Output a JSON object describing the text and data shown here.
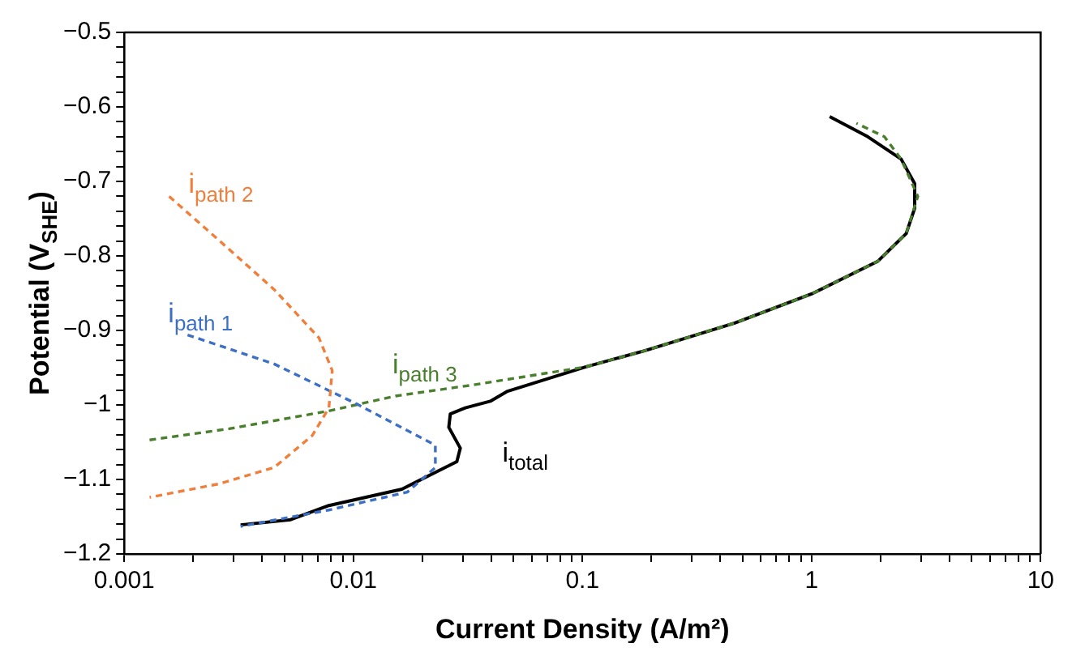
{
  "chart_data": {
    "type": "line",
    "xlabel": "Current Density (A/m²)",
    "ylabel": "Potential (V$_{SHE}$)",
    "log": "x",
    "grid": false,
    "legend": false,
    "marker": "none",
    "xlim": [
      0.001,
      10
    ],
    "ylim": [
      -1.2,
      -0.5
    ],
    "xticks": [
      0.001,
      {
        "value": 0.002,
        "label": null
      },
      {
        "value": 0.003,
        "label": null
      },
      {
        "value": 0.004,
        "label": null
      },
      {
        "value": 0.005,
        "label": null
      },
      {
        "value": 0.006,
        "label": null
      },
      {
        "value": 0.007,
        "label": null
      },
      {
        "value": 0.008,
        "label": null
      },
      {
        "value": 0.009,
        "label": null
      },
      0.01,
      {
        "value": 0.02,
        "label": null
      },
      {
        "value": 0.03,
        "label": null
      },
      {
        "value": 0.04,
        "label": null
      },
      {
        "value": 0.05,
        "label": null
      },
      {
        "value": 0.06,
        "label": null
      },
      {
        "value": 0.07,
        "label": null
      },
      {
        "value": 0.08,
        "label": null
      },
      {
        "value": 0.09,
        "label": null
      },
      0.1,
      {
        "value": 0.2,
        "label": null
      },
      {
        "value": 0.3,
        "label": null
      },
      {
        "value": 0.4,
        "label": null
      },
      {
        "value": 0.5,
        "label": null
      },
      {
        "value": 0.6,
        "label": null
      },
      {
        "value": 0.7,
        "label": null
      },
      {
        "value": 0.8,
        "label": null
      },
      {
        "value": 0.9,
        "label": null
      },
      1,
      {
        "value": 2,
        "label": null
      },
      {
        "value": 3,
        "label": null
      },
      {
        "value": 4,
        "label": null
      },
      {
        "value": 5,
        "label": null
      },
      {
        "value": 6,
        "label": null
      },
      {
        "value": 7,
        "label": null
      },
      {
        "value": 8,
        "label": null
      },
      {
        "value": 9,
        "label": null
      },
      10
    ],
    "yticks": [
      {
        "value": -1.2,
        "label": "−1.2"
      },
      {
        "value": -1.18,
        "label": null
      },
      {
        "value": -1.16,
        "label": null
      },
      {
        "value": -1.14,
        "label": null
      },
      {
        "value": -1.12,
        "label": null
      },
      {
        "value": -1.1,
        "label": "−1.1"
      },
      {
        "value": -1.08,
        "label": null
      },
      {
        "value": -1.06,
        "label": null
      },
      {
        "value": -1.04,
        "label": null
      },
      {
        "value": -1.02,
        "label": null
      },
      {
        "value": -1,
        "label": "−1"
      },
      {
        "value": -0.98,
        "label": null
      },
      {
        "value": -0.96,
        "label": null
      },
      {
        "value": -0.94,
        "label": null
      },
      {
        "value": -0.92,
        "label": null
      },
      {
        "value": -0.9,
        "label": "−0.9"
      },
      {
        "value": -0.88,
        "label": null
      },
      {
        "value": -0.86,
        "label": null
      },
      {
        "value": -0.84,
        "label": null
      },
      {
        "value": -0.82,
        "label": null
      },
      {
        "value": -0.8,
        "label": "−0.8"
      },
      {
        "value": -0.78,
        "label": null
      },
      {
        "value": -0.76,
        "label": null
      },
      {
        "value": -0.74,
        "label": null
      },
      {
        "value": -0.72,
        "label": null
      },
      {
        "value": -0.7,
        "label": "−0.7"
      },
      {
        "value": -0.68,
        "label": null
      },
      {
        "value": -0.66,
        "label": null
      },
      {
        "value": -0.64,
        "label": null
      },
      {
        "value": -0.62,
        "label": null
      },
      {
        "value": -0.6,
        "label": "−0.6"
      },
      {
        "value": -0.58,
        "label": null
      },
      {
        "value": -0.56,
        "label": null
      },
      {
        "value": -0.54,
        "label": null
      },
      {
        "value": -0.52,
        "label": null
      },
      {
        "value": -0.5,
        "label": "−0.5"
      }
    ],
    "series": [
      {
        "name": "i$_{path 2}$",
        "color": "#f07f3c",
        "line_style": "dashed",
        "x": [
          0.00157,
          0.00259,
          0.00451,
          0.00708,
          0.00809,
          0.00782,
          0.00662,
          0.00451,
          0.00259,
          0.00129
        ],
        "values": [
          -0.72,
          -0.779,
          -0.845,
          -0.91,
          -0.954,
          -1.004,
          -1.041,
          -1.084,
          -1.106,
          -1.124
        ]
      },
      {
        "name": "i$_{path 1}$",
        "color": "#3d6fc4",
        "line_style": "dashed",
        "x": [
          0.00189,
          0.00451,
          0.0104,
          0.0228,
          0.0228,
          0.0172,
          0.00782,
          0.00322
        ],
        "values": [
          -0.906,
          -0.945,
          -0.999,
          -1.054,
          -1.084,
          -1.117,
          -1.141,
          -1.163
        ]
      },
      {
        "name": "i$_{path 3}$",
        "color": "#4a7f2e",
        "line_style": "dashed",
        "x": [
          0.00129,
          0.00287,
          0.00782,
          0.0153,
          0.0335,
          0.103,
          0.188,
          0.462,
          1.0,
          1.95,
          2.59,
          2.91,
          2.46,
          2.08,
          1.57
        ],
        "values": [
          -1.047,
          -1.032,
          -1.008,
          -0.988,
          -0.973,
          -0.949,
          -0.927,
          -0.89,
          -0.851,
          -0.807,
          -0.77,
          -0.72,
          -0.67,
          -0.64,
          -0.622
        ]
      },
      {
        "name": "i$_{total}$",
        "color": "#000000",
        "line_style": "solid",
        "x": [
          0.00322,
          0.00532,
          0.00782,
          0.0163,
          0.0283,
          0.0293,
          0.0261,
          0.0265,
          0.0308,
          0.0396,
          0.0468,
          0.103,
          0.188,
          0.462,
          1.0,
          1.95,
          2.59,
          2.82,
          2.82,
          2.46,
          1.76,
          1.2
        ],
        "values": [
          -1.161,
          -1.154,
          -1.135,
          -1.113,
          -1.076,
          -1.058,
          -1.03,
          -1.012,
          -1.004,
          -0.995,
          -0.982,
          -0.949,
          -0.927,
          -0.89,
          -0.851,
          -0.807,
          -0.77,
          -0.736,
          -0.703,
          -0.67,
          -0.64,
          -0.613
        ]
      }
    ]
  }
}
